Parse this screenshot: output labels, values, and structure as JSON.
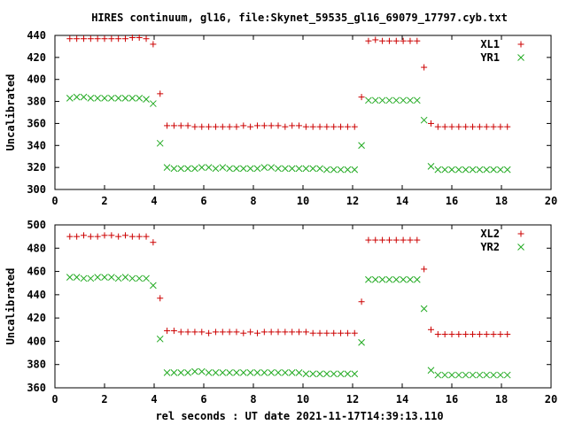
{
  "figure": {
    "title": "HIRES continuum, gl16, file:Skynet_59535_gl16_69079_17797.cyb.txt",
    "xlabel": "rel seconds : UT date 2021-11-17T14:39:13.110"
  },
  "colors": {
    "xl": "#cc0000",
    "yr": "#22aa22",
    "axis": "#000000"
  },
  "chart_data": [
    {
      "type": "scatter",
      "ylabel": "Uncalibrated",
      "xlim": [
        0,
        20
      ],
      "ylim": [
        300,
        440
      ],
      "xticks": [
        0,
        2,
        4,
        6,
        8,
        10,
        12,
        14,
        16,
        18,
        20
      ],
      "yticks": [
        300,
        320,
        340,
        360,
        380,
        400,
        420,
        440
      ],
      "legend_position": "top-right",
      "series": [
        {
          "name": "XL1",
          "marker": "plus",
          "x": [
            0.6,
            0.88,
            1.16,
            1.44,
            1.72,
            2.0,
            2.28,
            2.56,
            2.84,
            3.12,
            3.4,
            3.68,
            3.96,
            4.24,
            4.52,
            4.8,
            5.08,
            5.36,
            5.64,
            5.92,
            6.2,
            6.48,
            6.76,
            7.04,
            7.32,
            7.6,
            7.88,
            8.16,
            8.44,
            8.72,
            9.0,
            9.28,
            9.56,
            9.84,
            10.12,
            10.4,
            10.68,
            10.96,
            11.24,
            11.52,
            11.8,
            12.08,
            12.36,
            12.64,
            12.92,
            13.2,
            13.48,
            13.76,
            14.04,
            14.32,
            14.6,
            14.88,
            15.16,
            15.44,
            15.72,
            16.0,
            16.28,
            16.56,
            16.84,
            17.12,
            17.4,
            17.68,
            17.96,
            18.24
          ],
          "y": [
            437,
            437,
            437,
            437,
            437,
            437,
            437,
            437,
            437,
            438,
            438,
            437,
            432,
            387,
            358,
            358,
            358,
            358,
            357,
            357,
            357,
            357,
            357,
            357,
            357,
            358,
            357,
            358,
            358,
            358,
            358,
            357,
            358,
            358,
            357,
            357,
            357,
            357,
            357,
            357,
            357,
            357,
            384,
            435,
            436,
            435,
            435,
            435,
            435,
            435,
            435,
            411,
            360,
            357,
            357,
            357,
            357,
            357,
            357,
            357,
            357,
            357,
            357,
            357
          ]
        },
        {
          "name": "YR1",
          "marker": "cross",
          "x": [
            0.6,
            0.88,
            1.16,
            1.44,
            1.72,
            2.0,
            2.28,
            2.56,
            2.84,
            3.12,
            3.4,
            3.68,
            3.96,
            4.24,
            4.52,
            4.8,
            5.08,
            5.36,
            5.64,
            5.92,
            6.2,
            6.48,
            6.76,
            7.04,
            7.32,
            7.6,
            7.88,
            8.16,
            8.44,
            8.72,
            9.0,
            9.28,
            9.56,
            9.84,
            10.12,
            10.4,
            10.68,
            10.96,
            11.24,
            11.52,
            11.8,
            12.08,
            12.36,
            12.64,
            12.92,
            13.2,
            13.48,
            13.76,
            14.04,
            14.32,
            14.6,
            14.88,
            15.16,
            15.44,
            15.72,
            16.0,
            16.28,
            16.56,
            16.84,
            17.12,
            17.4,
            17.68,
            17.96,
            18.24
          ],
          "y": [
            383,
            384,
            384,
            383,
            383,
            383,
            383,
            383,
            383,
            383,
            383,
            382,
            378,
            342,
            320,
            319,
            319,
            319,
            319,
            320,
            320,
            319,
            320,
            319,
            319,
            319,
            319,
            319,
            320,
            320,
            319,
            319,
            319,
            319,
            319,
            319,
            319,
            318,
            318,
            318,
            318,
            318,
            340,
            381,
            381,
            381,
            381,
            381,
            381,
            381,
            381,
            363,
            321,
            318,
            318,
            318,
            318,
            318,
            318,
            318,
            318,
            318,
            318,
            318
          ]
        }
      ]
    },
    {
      "type": "scatter",
      "ylabel": "Uncalibrated",
      "xlim": [
        0,
        20
      ],
      "ylim": [
        360,
        500
      ],
      "xticks": [
        0,
        2,
        4,
        6,
        8,
        10,
        12,
        14,
        16,
        18,
        20
      ],
      "yticks": [
        360,
        380,
        400,
        420,
        440,
        460,
        480,
        500
      ],
      "legend_position": "top-right",
      "series": [
        {
          "name": "XL2",
          "marker": "plus",
          "x": [
            0.6,
            0.88,
            1.16,
            1.44,
            1.72,
            2.0,
            2.28,
            2.56,
            2.84,
            3.12,
            3.4,
            3.68,
            3.96,
            4.24,
            4.52,
            4.8,
            5.08,
            5.36,
            5.64,
            5.92,
            6.2,
            6.48,
            6.76,
            7.04,
            7.32,
            7.6,
            7.88,
            8.16,
            8.44,
            8.72,
            9.0,
            9.28,
            9.56,
            9.84,
            10.12,
            10.4,
            10.68,
            10.96,
            11.24,
            11.52,
            11.8,
            12.08,
            12.36,
            12.64,
            12.92,
            13.2,
            13.48,
            13.76,
            14.04,
            14.32,
            14.6,
            14.88,
            15.16,
            15.44,
            15.72,
            16.0,
            16.28,
            16.56,
            16.84,
            17.12,
            17.4,
            17.68,
            17.96,
            18.24
          ],
          "y": [
            490,
            490,
            491,
            490,
            490,
            491,
            491,
            490,
            491,
            490,
            490,
            490,
            485,
            437,
            409,
            409,
            408,
            408,
            408,
            408,
            407,
            408,
            408,
            408,
            408,
            407,
            408,
            407,
            408,
            408,
            408,
            408,
            408,
            408,
            408,
            407,
            407,
            407,
            407,
            407,
            407,
            407,
            434,
            487,
            487,
            487,
            487,
            487,
            487,
            487,
            487,
            462,
            410,
            406,
            406,
            406,
            406,
            406,
            406,
            406,
            406,
            406,
            406,
            406
          ]
        },
        {
          "name": "YR2",
          "marker": "cross",
          "x": [
            0.6,
            0.88,
            1.16,
            1.44,
            1.72,
            2.0,
            2.28,
            2.56,
            2.84,
            3.12,
            3.4,
            3.68,
            3.96,
            4.24,
            4.52,
            4.8,
            5.08,
            5.36,
            5.64,
            5.92,
            6.2,
            6.48,
            6.76,
            7.04,
            7.32,
            7.6,
            7.88,
            8.16,
            8.44,
            8.72,
            9.0,
            9.28,
            9.56,
            9.84,
            10.12,
            10.4,
            10.68,
            10.96,
            11.24,
            11.52,
            11.8,
            12.08,
            12.36,
            12.64,
            12.92,
            13.2,
            13.48,
            13.76,
            14.04,
            14.32,
            14.6,
            14.88,
            15.16,
            15.44,
            15.72,
            16.0,
            16.28,
            16.56,
            16.84,
            17.12,
            17.4,
            17.68,
            17.96,
            18.24
          ],
          "y": [
            455,
            455,
            454,
            454,
            455,
            455,
            455,
            454,
            455,
            454,
            454,
            454,
            448,
            402,
            373,
            373,
            373,
            373,
            374,
            374,
            373,
            373,
            373,
            373,
            373,
            373,
            373,
            373,
            373,
            373,
            373,
            373,
            373,
            373,
            372,
            372,
            372,
            372,
            372,
            372,
            372,
            372,
            399,
            453,
            453,
            453,
            453,
            453,
            453,
            453,
            453,
            428,
            375,
            371,
            371,
            371,
            371,
            371,
            371,
            371,
            371,
            371,
            371,
            371
          ]
        }
      ]
    }
  ]
}
